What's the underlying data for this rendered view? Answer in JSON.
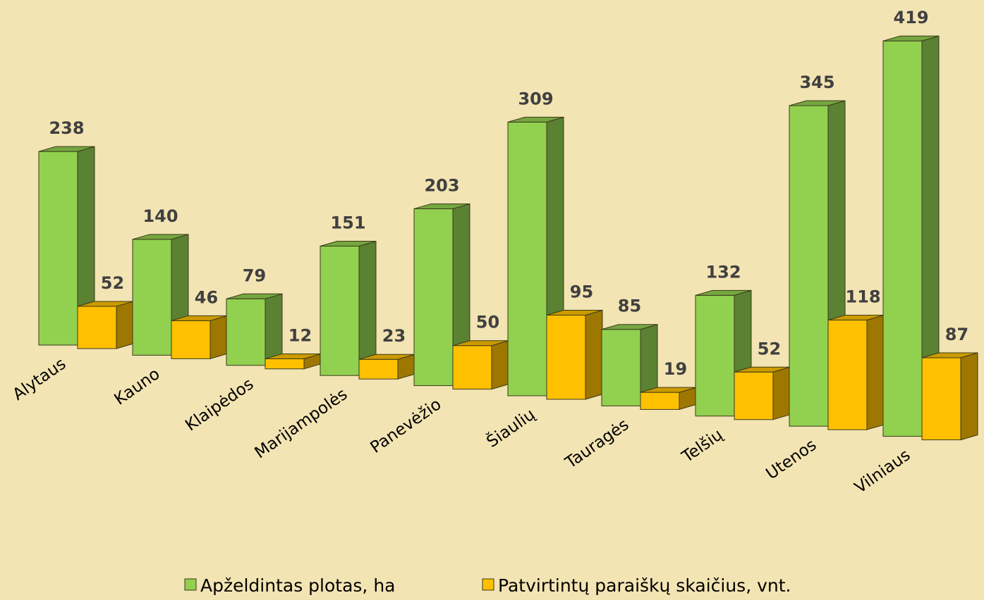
{
  "chart_data": {
    "type": "bar3d",
    "categories": [
      "Alytaus",
      "Kauno",
      "Klaipėdos",
      "Marijampolės",
      "Panevėžio",
      "Šiaulių",
      "Tauragės",
      "Telšių",
      "Utenos",
      "Vilniaus"
    ],
    "series": [
      {
        "name": "Apželdintas plotas, ha",
        "color": "#92d050",
        "values": [
          238,
          140,
          79,
          151,
          203,
          309,
          85,
          132,
          345,
          419
        ]
      },
      {
        "name": "Patvirtintų paraiškų skaičius, vnt.",
        "color": "#ffc000",
        "values": [
          52,
          46,
          12,
          23,
          50,
          95,
          19,
          52,
          118,
          87
        ]
      }
    ],
    "legend": "bottom"
  }
}
